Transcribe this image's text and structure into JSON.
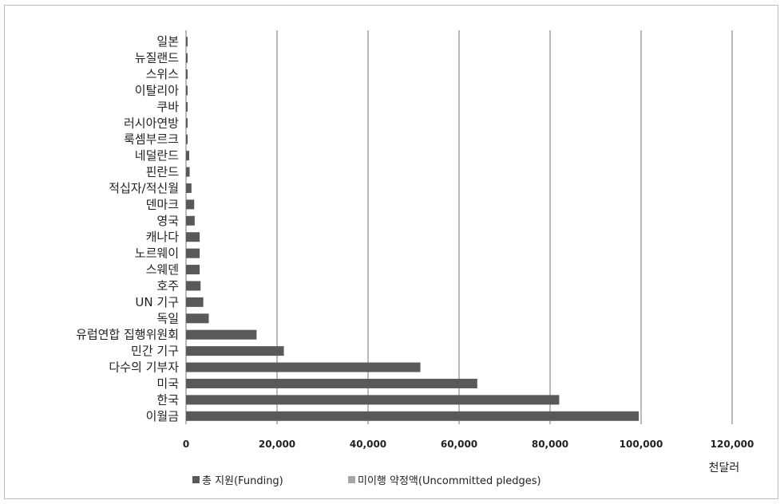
{
  "chart_data": {
    "type": "bar",
    "orientation": "horizontal",
    "categories": [
      "일본",
      "뉴질랜드",
      "스위스",
      "이탈리아",
      "쿠바",
      "러시아연방",
      "룩셈부르크",
      "네덜란드",
      "핀란드",
      "적십자/적신월",
      "덴마크",
      "영국",
      "캐나다",
      "노르웨이",
      "스웨덴",
      "호주",
      "UN 기구",
      "독일",
      "유럽연합 집행위원회",
      "민간 기구",
      "다수의 기부자",
      "미국",
      "한국",
      "이월금"
    ],
    "series": [
      {
        "name": "총 지원(Funding)",
        "color": "#595959",
        "values": [
          50,
          80,
          100,
          120,
          150,
          250,
          300,
          700,
          800,
          1200,
          1800,
          1900,
          3000,
          3000,
          3000,
          3200,
          3800,
          5000,
          15500,
          21500,
          51500,
          64000,
          82000,
          99500
        ]
      },
      {
        "name": "미이행 약정액(Uncommitted pledges)",
        "color": "#a6a6a6",
        "values": [
          0,
          0,
          0,
          0,
          0,
          0,
          0,
          0,
          0,
          0,
          0,
          0,
          0,
          0,
          0,
          0,
          0,
          0,
          0,
          0,
          0,
          0,
          0,
          0
        ]
      }
    ],
    "xlim": [
      0,
      120000
    ],
    "xticks": [
      "0",
      "20,000",
      "40,000",
      "60,000",
      "80,000",
      "100,000",
      "120,000"
    ],
    "xlabel": "천달러",
    "grid": "vertical",
    "legend_position": "bottom-left"
  }
}
